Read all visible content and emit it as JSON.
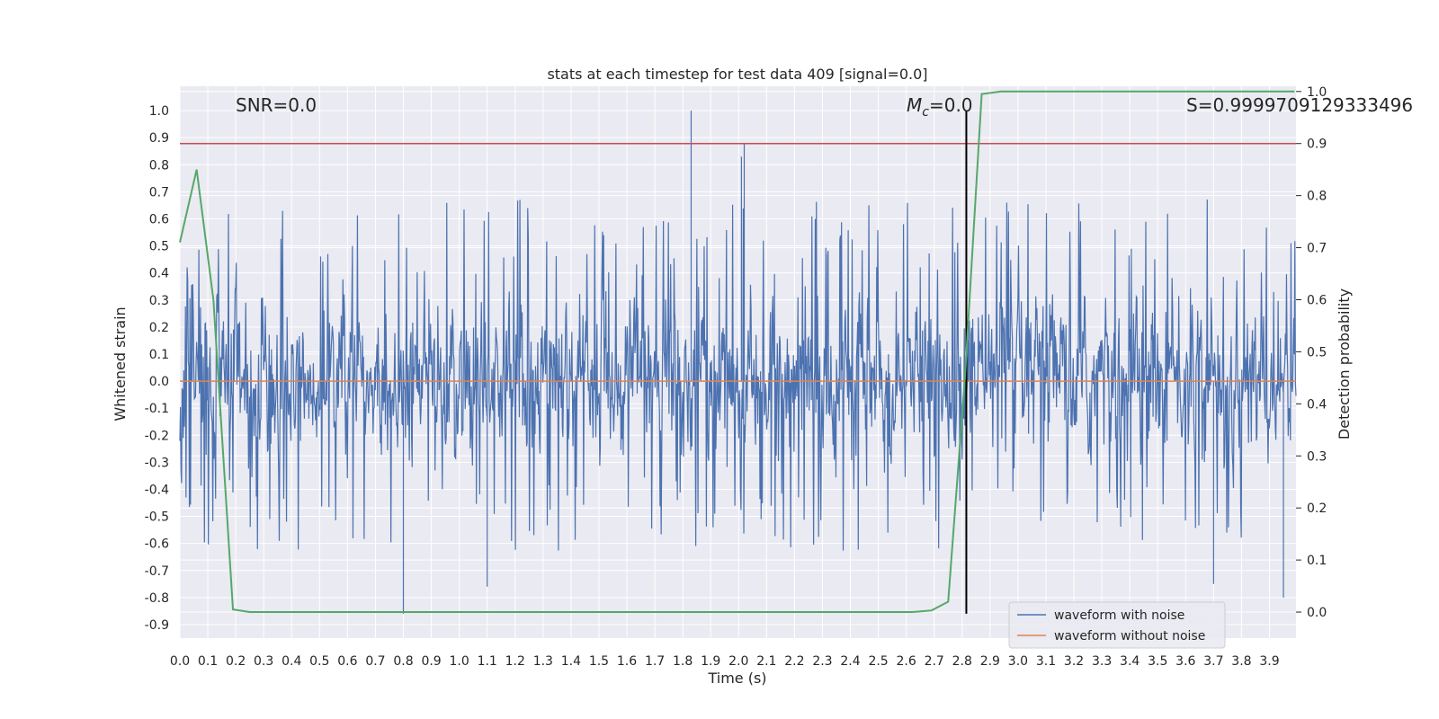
{
  "chart_data": {
    "type": "line",
    "title": "stats at each timestep for test data 409 [signal=0.0]",
    "xlabel": "Time (s)",
    "ylabel": "Whitened strain",
    "y2label": "Detection probability",
    "xlim": [
      0.0,
      3.995
    ],
    "ylim": [
      -0.95,
      1.09
    ],
    "y2lim": [
      -0.05,
      1.01
    ],
    "x_ticks": [
      0.0,
      0.1,
      0.2,
      0.3,
      0.4,
      0.5,
      0.6,
      0.7,
      0.8,
      0.9,
      1.0,
      1.1,
      1.2,
      1.3,
      1.4,
      1.5,
      1.6,
      1.7,
      1.8,
      1.9,
      2.0,
      2.1,
      2.2,
      2.3,
      2.4,
      2.5,
      2.6,
      2.7,
      2.8,
      2.9,
      3.0,
      3.1,
      3.2,
      3.3,
      3.4,
      3.5,
      3.6,
      3.7,
      3.8,
      3.9
    ],
    "x_tick_labels": [
      "0.0",
      "0.1",
      "0.2",
      "0.3",
      "0.4",
      "0.5",
      "0.6",
      "0.7",
      "0.8",
      "0.9",
      "1.0",
      "1.1",
      "1.2",
      "1.3",
      "1.4",
      "1.5",
      "1.6",
      "1.7",
      "1.8",
      "1.9",
      "2.0",
      "2.1",
      "2.2",
      "2.3",
      "2.4",
      "2.5",
      "2.6",
      "2.7",
      "2.8",
      "2.9",
      "3.0",
      "3.1",
      "3.2",
      "3.3",
      "3.4",
      "3.5",
      "3.6",
      "3.7",
      "3.8",
      "3.9"
    ],
    "y_ticks": [
      1.0,
      0.9,
      0.8,
      0.7,
      0.6,
      0.5,
      0.4,
      0.3,
      0.2,
      0.1,
      0.0,
      -0.1,
      -0.2,
      -0.3,
      -0.4,
      -0.5,
      -0.6,
      -0.7,
      -0.8,
      -0.9
    ],
    "y_tick_labels": [
      "1.0",
      "0.9",
      "0.8",
      "0.7",
      "0.6",
      "0.5",
      "0.4",
      "0.3",
      "0.2",
      "0.1",
      "0.0",
      "-0.1",
      "-0.2",
      "-0.3",
      "-0.4",
      "-0.5",
      "-0.6",
      "-0.7",
      "-0.8",
      "-0.9"
    ],
    "y2_ticks": [
      1.0,
      0.9,
      0.8,
      0.7,
      0.6,
      0.5,
      0.4,
      0.3,
      0.2,
      0.1,
      0.0
    ],
    "y2_tick_labels": [
      "1.0",
      "0.9",
      "0.8",
      "0.7",
      "0.6",
      "0.5",
      "0.4",
      "0.3",
      "0.2",
      "0.1",
      "0.0"
    ],
    "grid": true,
    "annotations": [
      "SNR=0.0",
      "M",
      "c",
      "=0.0",
      "S=0.9999709129333496"
    ],
    "legend": {
      "placement": "lower-right",
      "entries": [
        "waveform with noise",
        "waveform without noise"
      ]
    },
    "colors": {
      "noise": "#4c72b0",
      "clean": "#dd8452",
      "prob": "#55a868",
      "threshold": "#c44e52",
      "marker": "#000000",
      "background": "#eaeaf2",
      "grid": "#ffffff"
    },
    "series": [
      {
        "name": "waveform with noise",
        "kind": "noise",
        "x_range": [
          0.0,
          3.995
        ],
        "envelope_max": 1.0,
        "envelope_min": -0.86,
        "notable_peaks": [
          [
            1.83,
            1.0
          ],
          [
            2.02,
            0.88
          ],
          [
            2.01,
            0.83
          ],
          [
            0.8,
            -0.86
          ],
          [
            3.95,
            -0.8
          ],
          [
            3.7,
            -0.75
          ],
          [
            1.1,
            -0.76
          ]
        ]
      },
      {
        "name": "waveform without noise",
        "x": [
          0.0,
          3.995
        ],
        "y": [
          0.0,
          0.0
        ]
      },
      {
        "name": "detection probability",
        "axis": "right",
        "x": [
          0.0,
          0.06,
          0.12,
          0.19,
          0.25,
          0.31,
          0.37,
          0.5,
          1.0,
          1.5,
          2.0,
          2.5,
          2.62,
          2.69,
          2.75,
          2.81,
          2.87,
          2.94,
          3.0,
          3.5,
          3.99
        ],
        "y": [
          0.71,
          0.85,
          0.6,
          0.005,
          0.0,
          0.0,
          0.0,
          0.0,
          0.0,
          0.0,
          0.0,
          0.0,
          0.0,
          0.003,
          0.02,
          0.45,
          0.995,
          1.0,
          1.0,
          1.0,
          1.0
        ]
      }
    ],
    "hlines": [
      {
        "axis": "right",
        "y": 0.9,
        "kind": "threshold"
      }
    ],
    "vlines": [
      {
        "x": 2.815,
        "ymin": -0.86,
        "ymax": 1.0,
        "kind": "marker"
      }
    ]
  }
}
